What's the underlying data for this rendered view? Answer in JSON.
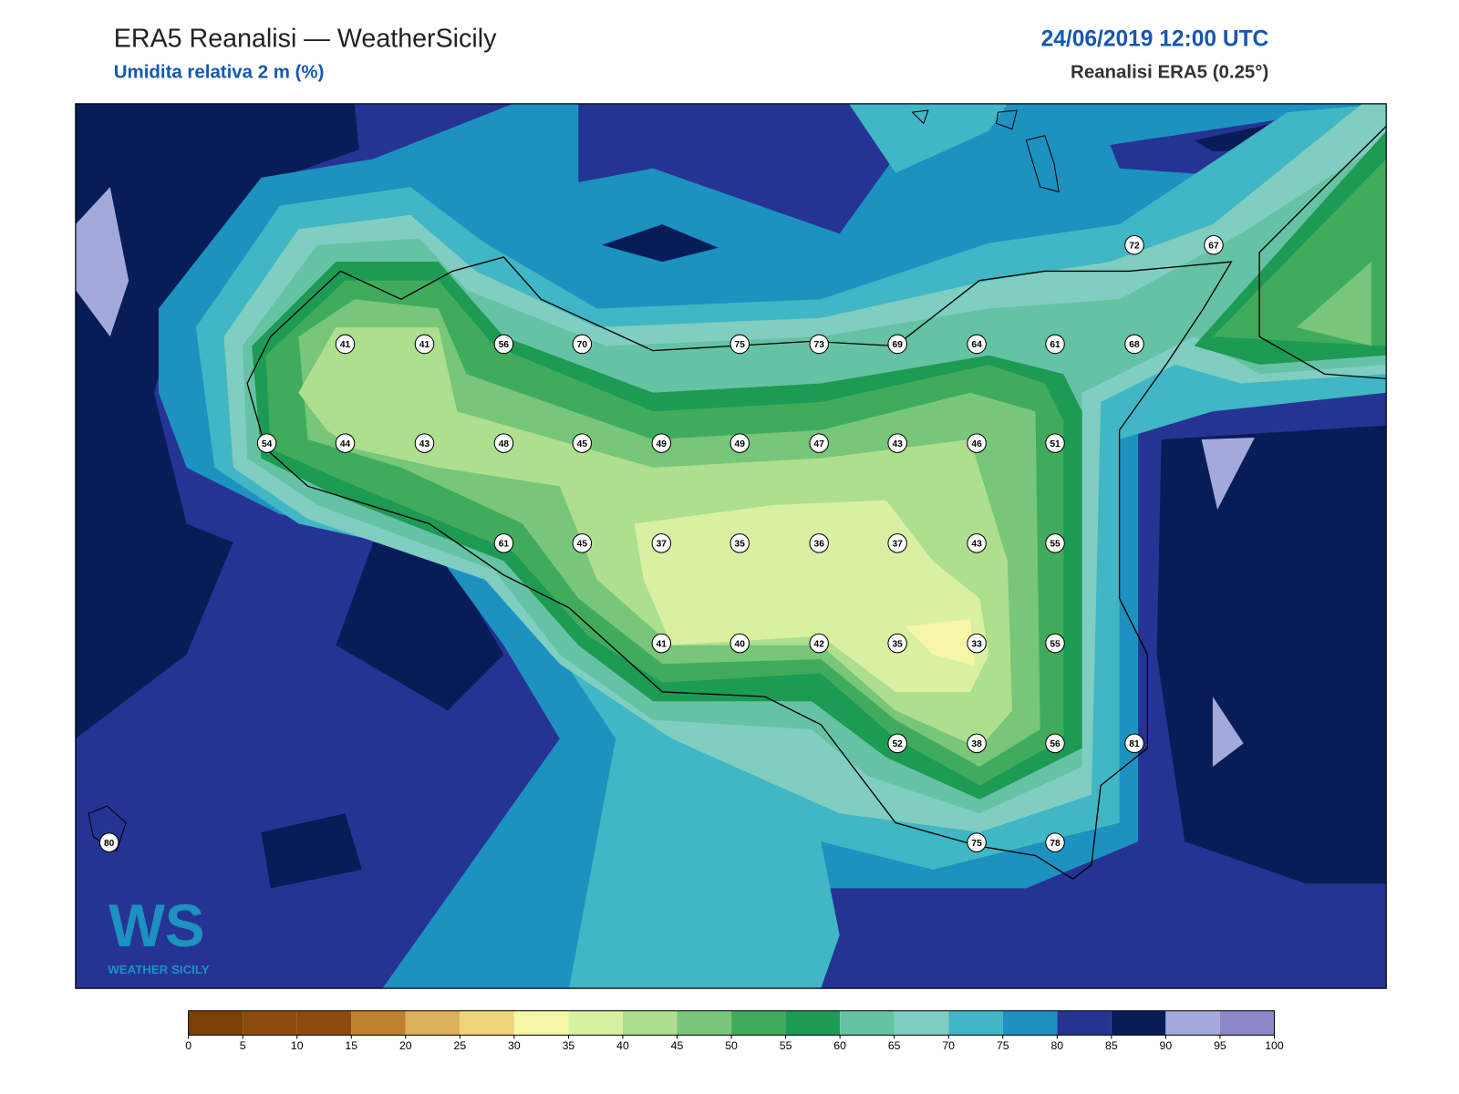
{
  "header": {
    "title": "ERA5 Reanalisi — WeatherSicily",
    "subtitle": "Umidita relativa 2 m (%)",
    "datetime": "24/06/2019 12:00 UTC",
    "source": "Reanalisi ERA5 (0.25°)"
  },
  "stations": [
    41,
    41,
    56,
    70,
    75,
    73,
    69,
    64,
    61,
    68,
    72,
    67,
    54,
    44,
    43,
    48,
    45,
    49,
    49,
    47,
    43,
    46,
    51,
    61,
    45,
    37,
    35,
    36,
    37,
    43,
    55,
    41,
    40,
    42,
    35,
    33,
    55,
    52,
    38,
    56,
    81,
    75,
    78,
    80
  ],
  "logo": {
    "mark": "WS",
    "name": "WEATHER SICILY"
  },
  "colorbar": {
    "ticks": [
      0,
      5,
      10,
      15,
      20,
      25,
      30,
      35,
      40,
      45,
      50,
      55,
      60,
      65,
      70,
      75,
      80,
      85,
      90,
      95,
      100
    ],
    "colors": [
      "#7a4006",
      "#8c4a0c",
      "#8c4a0c",
      "#bf812d",
      "#dfb05a",
      "#f0d47c",
      "#f6f6a9",
      "#d9f0a3",
      "#addf8e",
      "#78c679",
      "#41ab5d",
      "#1d9a54",
      "#66c2a4",
      "#80cdc1",
      "#41b6c4",
      "#1d91c0",
      "#253494",
      "#081d58",
      "#a3a9da",
      "#8c89c8"
    ]
  }
}
